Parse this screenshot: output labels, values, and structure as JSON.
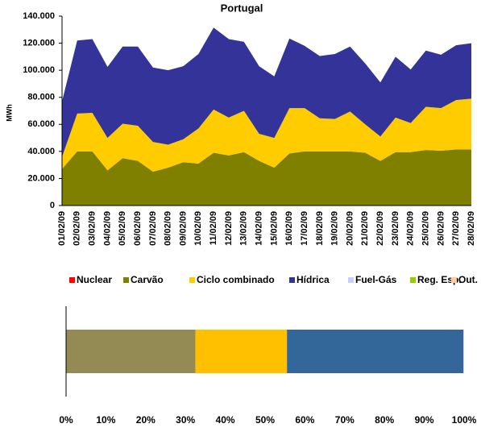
{
  "chart_data": [
    {
      "type": "area",
      "stacked": true,
      "title": "Portugal",
      "y_label": "MWh",
      "categories": [
        "01/02/09",
        "02/02/09",
        "03/02/09",
        "04/02/09",
        "05/02/09",
        "06/02/09",
        "07/02/09",
        "08/02/09",
        "09/02/09",
        "10/02/09",
        "11/02/09",
        "12/02/09",
        "13/02/09",
        "14/02/09",
        "15/02/09",
        "16/02/09",
        "17/02/09",
        "18/02/09",
        "19/02/09",
        "20/02/09",
        "21/02/09",
        "22/02/09",
        "23/02/09",
        "24/02/09",
        "25/02/09",
        "26/02/09",
        "27/02/09",
        "28/02/09"
      ],
      "series": [
        {
          "name": "Nuclear",
          "color": "#ff0000",
          "values": [
            0,
            0,
            0,
            0,
            0,
            0,
            0,
            0,
            0,
            0,
            0,
            0,
            0,
            0,
            0,
            0,
            0,
            0,
            0,
            0,
            0,
            0,
            0,
            0,
            0,
            0,
            0,
            0
          ]
        },
        {
          "name": "Carvão",
          "color": "#808000",
          "values": [
            27000,
            40000,
            40000,
            26000,
            35000,
            33000,
            25000,
            28000,
            32000,
            31000,
            39000,
            37000,
            39500,
            33000,
            28000,
            38500,
            40000,
            40000,
            40000,
            40000,
            39000,
            33000,
            39500,
            39500,
            41000,
            40500,
            41500,
            41500
          ]
        },
        {
          "name": "Ciclo combinado",
          "color": "#ffcc00",
          "values": [
            9000,
            28000,
            28500,
            24000,
            25500,
            26000,
            22000,
            17000,
            17000,
            26000,
            32000,
            28000,
            30500,
            20000,
            22000,
            33500,
            32000,
            24500,
            24000,
            29500,
            21000,
            18000,
            25500,
            21500,
            32000,
            31500,
            36500,
            37500
          ]
        },
        {
          "name": "Hídrica",
          "color": "#333399",
          "values": [
            41000,
            54000,
            54500,
            52500,
            57000,
            58500,
            55000,
            55000,
            54000,
            55000,
            60500,
            58000,
            51000,
            50000,
            45500,
            51500,
            46000,
            46000,
            48000,
            48000,
            45000,
            40000,
            45000,
            39500,
            41500,
            39500,
            40500,
            41000
          ]
        },
        {
          "name": "Fuel-Gás",
          "color": "#ccccff",
          "values": [
            0,
            0,
            0,
            0,
            0,
            0,
            0,
            0,
            0,
            0,
            0,
            0,
            0,
            0,
            0,
            0,
            0,
            0,
            0,
            0,
            0,
            0,
            0,
            0,
            0,
            0,
            0,
            0
          ]
        },
        {
          "name": "Reg. Esp.",
          "color": "#99cc00",
          "values": [
            0,
            0,
            0,
            0,
            0,
            0,
            0,
            0,
            0,
            0,
            0,
            0,
            0,
            0,
            0,
            0,
            0,
            0,
            0,
            0,
            0,
            0,
            0,
            0,
            0,
            0,
            0,
            0
          ]
        },
        {
          "name": "Out.",
          "color": "#ffcc99",
          "values": [
            0,
            0,
            0,
            0,
            0,
            0,
            0,
            0,
            0,
            0,
            0,
            0,
            0,
            0,
            0,
            0,
            0,
            0,
            0,
            0,
            0,
            0,
            0,
            0,
            0,
            0,
            0,
            0
          ]
        }
      ],
      "ylim": [
        0,
        140000
      ],
      "yticks": [
        0,
        {
          "value": 20000,
          "label": "20.000"
        },
        {
          "value": 40000,
          "label": "40.000"
        },
        {
          "value": 60000,
          "label": "60.000"
        },
        {
          "value": 80000,
          "label": "80.000"
        },
        {
          "value": 100000,
          "label": "100.000"
        },
        {
          "value": 120000,
          "label": "120.000"
        },
        {
          "value": 140000,
          "label": "140.000"
        }
      ],
      "legend": "below"
    },
    {
      "type": "bar",
      "orientation": "horizontal",
      "stacked": true,
      "values": [
        0,
        32.5,
        23,
        44.3,
        0.2,
        0,
        0
      ],
      "colors": [
        "#ff0000",
        "#948a54",
        "#ffc000",
        "#336699",
        "#ccccff",
        "#99cc00",
        "#ffcc99"
      ],
      "xlim": [
        0,
        100
      ],
      "xticks": [
        {
          "value": 0,
          "label": "0%"
        },
        {
          "value": 10,
          "label": "10%"
        },
        {
          "value": 20,
          "label": "20%"
        },
        {
          "value": 30,
          "label": "30%"
        },
        {
          "value": 40,
          "label": "40%"
        },
        {
          "value": 50,
          "label": "50%"
        },
        {
          "value": 60,
          "label": "60%"
        },
        {
          "value": 70,
          "label": "70%"
        },
        {
          "value": 80,
          "label": "80%"
        },
        {
          "value": 90,
          "label": "90%"
        },
        {
          "value": 100,
          "label": "100%"
        }
      ]
    }
  ]
}
